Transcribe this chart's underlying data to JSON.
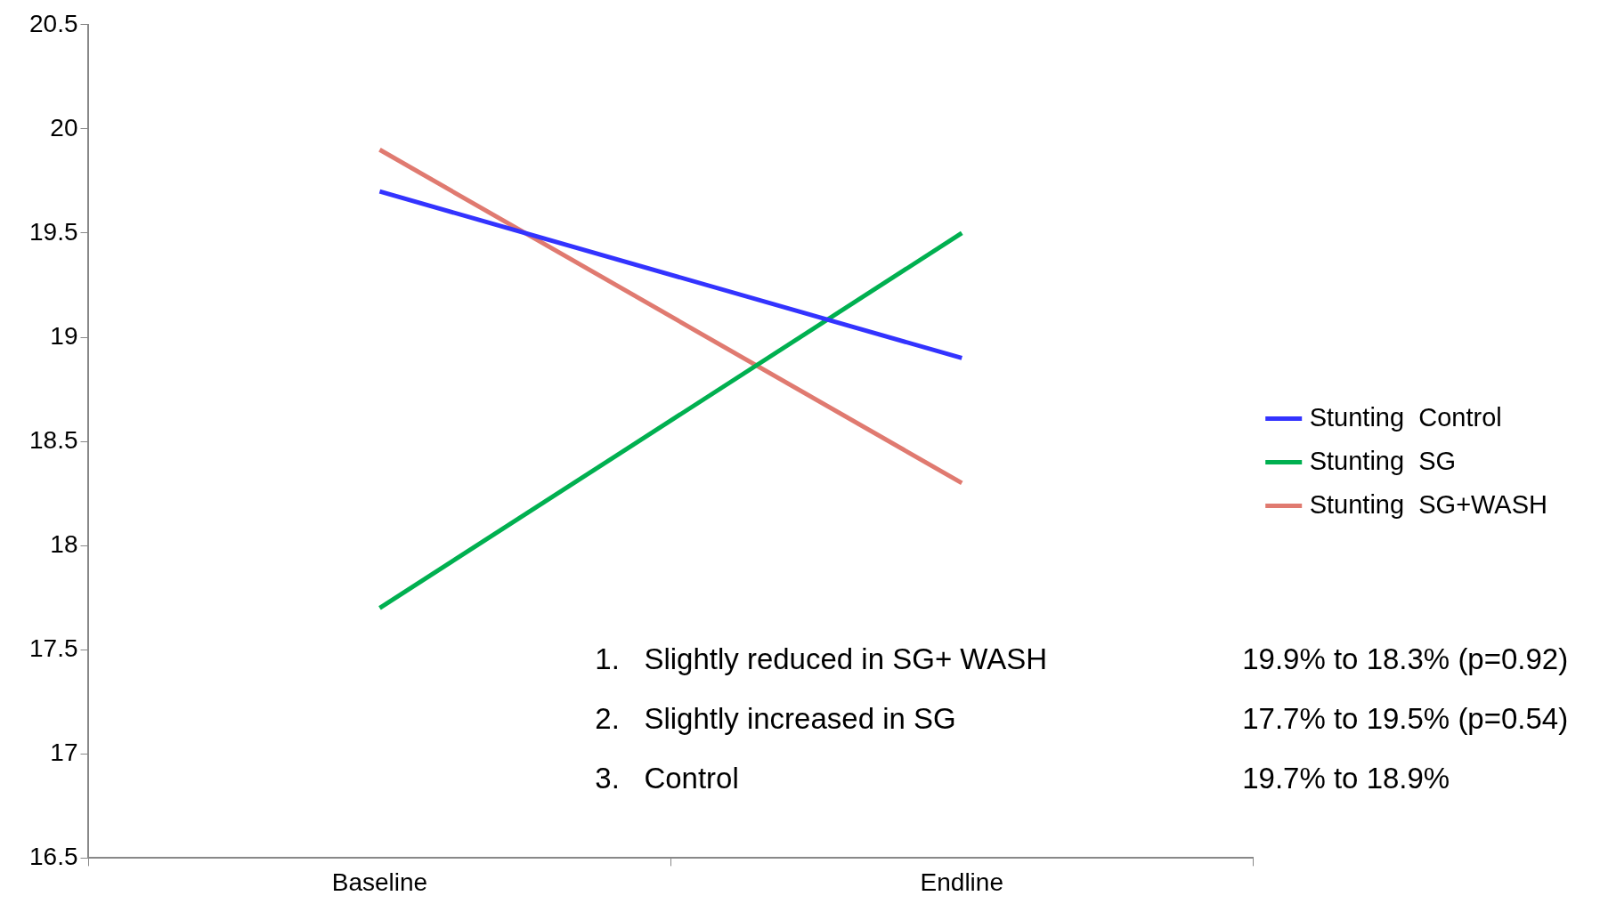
{
  "chart_data": {
    "type": "line",
    "categories": [
      "Baseline",
      "Endline"
    ],
    "series": [
      {
        "name": "Stunting  Control",
        "color": "#3333ff",
        "values": [
          19.7,
          18.9
        ]
      },
      {
        "name": "Stunting  SG",
        "color": "#00b050",
        "values": [
          17.7,
          19.5
        ]
      },
      {
        "name": "Stunting  SG+WASH",
        "color": "#e07a70",
        "values": [
          19.9,
          18.3
        ]
      }
    ],
    "ylim": [
      16.5,
      20.5
    ],
    "yticks": [
      16.5,
      17,
      17.5,
      18,
      18.5,
      19,
      19.5,
      20,
      20.5
    ],
    "grid": false,
    "legend": "right",
    "marker": "none",
    "line_style": "solid",
    "annotations": [
      "1.   Slightly reduced in SG+ WASH",
      "19.9% to 18.3% (p=0.92)",
      "2.   Slightly increased in SG",
      "17.7% to 19.5% (p=0.54)",
      "3.   Control",
      "19.7% to 18.9%"
    ]
  }
}
